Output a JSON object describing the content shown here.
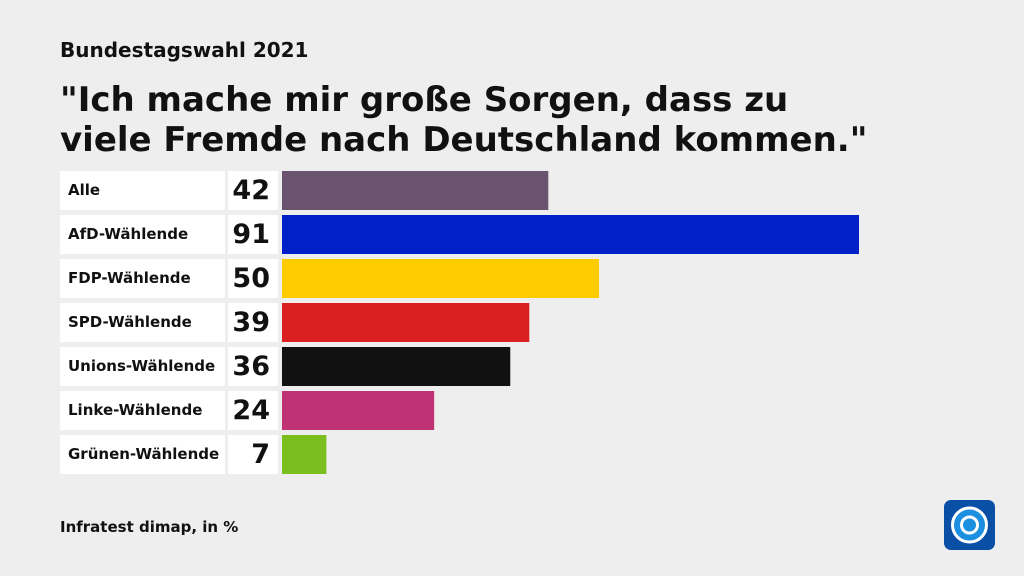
{
  "chart_data": {
    "type": "bar",
    "orientation": "horizontal",
    "subtitle": "Bundestagswahl 2021",
    "title": "\"Ich mache mir große Sorgen, dass zu viele Fremde nach Deutschland kommen.\"",
    "source": "Infratest dimap, in %",
    "categories": [
      "Alle",
      "AfD-Wählende",
      "FDP-Wählende",
      "SPD-Wählende",
      "Unions-Wählende",
      "Linke-Wählende",
      "Grünen-Wählende"
    ],
    "values": [
      42,
      91,
      50,
      39,
      36,
      24,
      7
    ],
    "colors": [
      "#69536f",
      "#0021c8",
      "#ffcc00",
      "#d91f20",
      "#111111",
      "#bf3374",
      "#7bbf1e"
    ]
  }
}
